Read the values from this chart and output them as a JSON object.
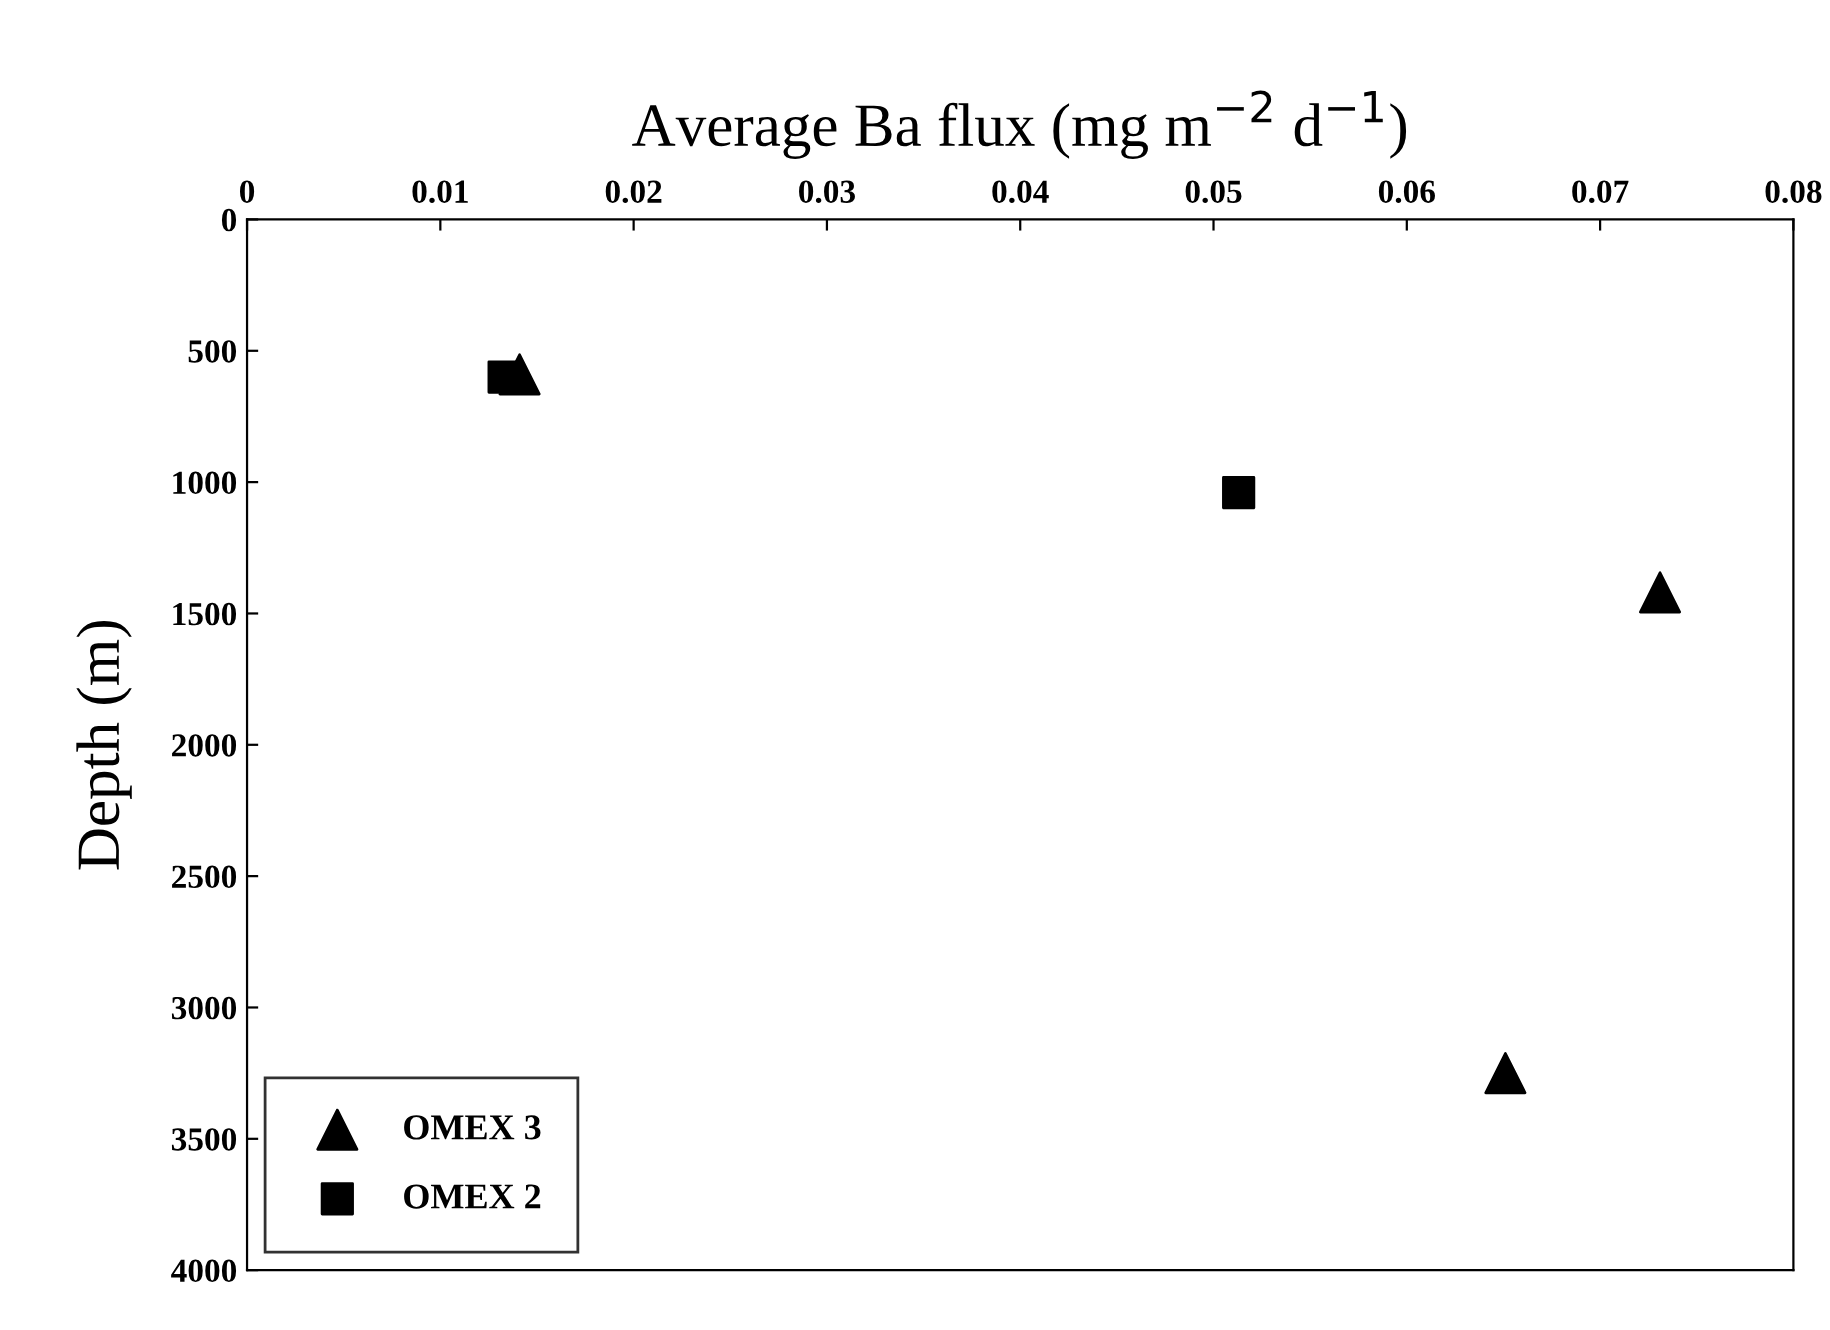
{
  "chart_data": {
    "type": "scatter",
    "xlabel": "Average Ba flux (mg m$^{−2}$ d$^{−1}$)",
    "ylabel": "Depth (m)",
    "xlim": [
      0,
      0.08
    ],
    "xticks": [
      0,
      0.01,
      0.02,
      0.03,
      0.04,
      0.05,
      0.06,
      0.07,
      0.08
    ],
    "ylim": [
      4000,
      0
    ],
    "yticks": [
      0,
      500,
      1000,
      1500,
      2000,
      2500,
      3000,
      3500,
      4000
    ],
    "grid": false,
    "legend": "bottom left",
    "series": [
      {
        "name": "OMEX 3",
        "color": "#000000",
        "marker": "triangle",
        "x": [
          0.0141,
          0.0731,
          0.0651
        ],
        "values": [
          590,
          1420,
          3250
        ]
      },
      {
        "name": "OMEX 2",
        "color": "#000000",
        "marker": "square",
        "x": [
          0.0133,
          0.0513
        ],
        "values": [
          600,
          1040
        ]
      }
    ]
  }
}
